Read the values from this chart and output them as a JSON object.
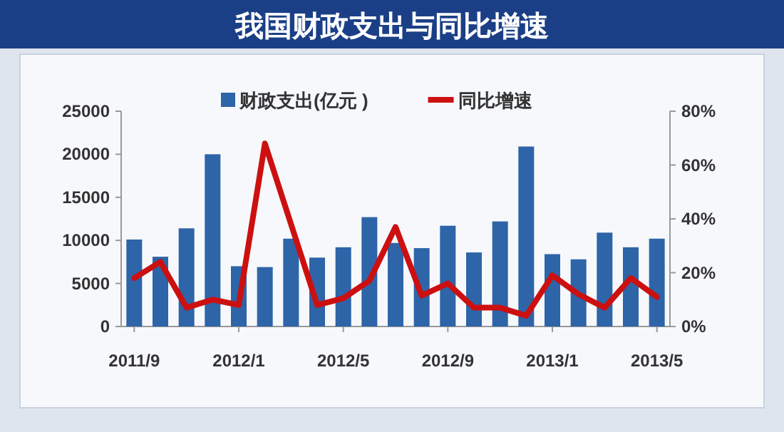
{
  "chart_data": {
    "type": "bar",
    "title": "我国财政支出与同比增速",
    "categories": [
      "2011/9",
      null,
      null,
      null,
      "2012/1",
      null,
      null,
      null,
      "2012/5",
      null,
      null,
      null,
      "2012/9",
      null,
      null,
      null,
      "2013/1",
      null,
      null,
      null,
      "2013/5"
    ],
    "series": [
      {
        "name": "财政支出(亿元 )",
        "color": "#2e64a8",
        "values": [
          10100,
          8100,
          11400,
          20000,
          7000,
          6900,
          10200,
          8000,
          9200,
          12700,
          9700,
          9100,
          11700,
          8600,
          12200,
          20900,
          8400,
          7800,
          10900,
          9200,
          10200
        ]
      },
      {
        "name": "同比增速",
        "type": "line",
        "axis": "y2",
        "color": "#cc1010",
        "values": [
          18,
          24,
          7,
          10,
          8,
          68,
          38,
          8,
          10.5,
          17,
          37,
          11.5,
          16,
          7,
          7,
          4,
          19,
          12,
          7,
          18,
          11
        ]
      }
    ],
    "ylim": [
      0,
      25000
    ],
    "yticks": [
      0,
      5000,
      10000,
      15000,
      20000,
      25000
    ],
    "y2lim": [
      0,
      80
    ],
    "y2ticks": [
      {
        "value": 0,
        "label": "0%"
      },
      {
        "value": 20,
        "label": "20%"
      },
      {
        "value": 40,
        "label": "40%"
      },
      {
        "value": 60,
        "label": "60%"
      },
      {
        "value": 80,
        "label": "80%"
      }
    ],
    "legend": "top",
    "grid": false
  }
}
